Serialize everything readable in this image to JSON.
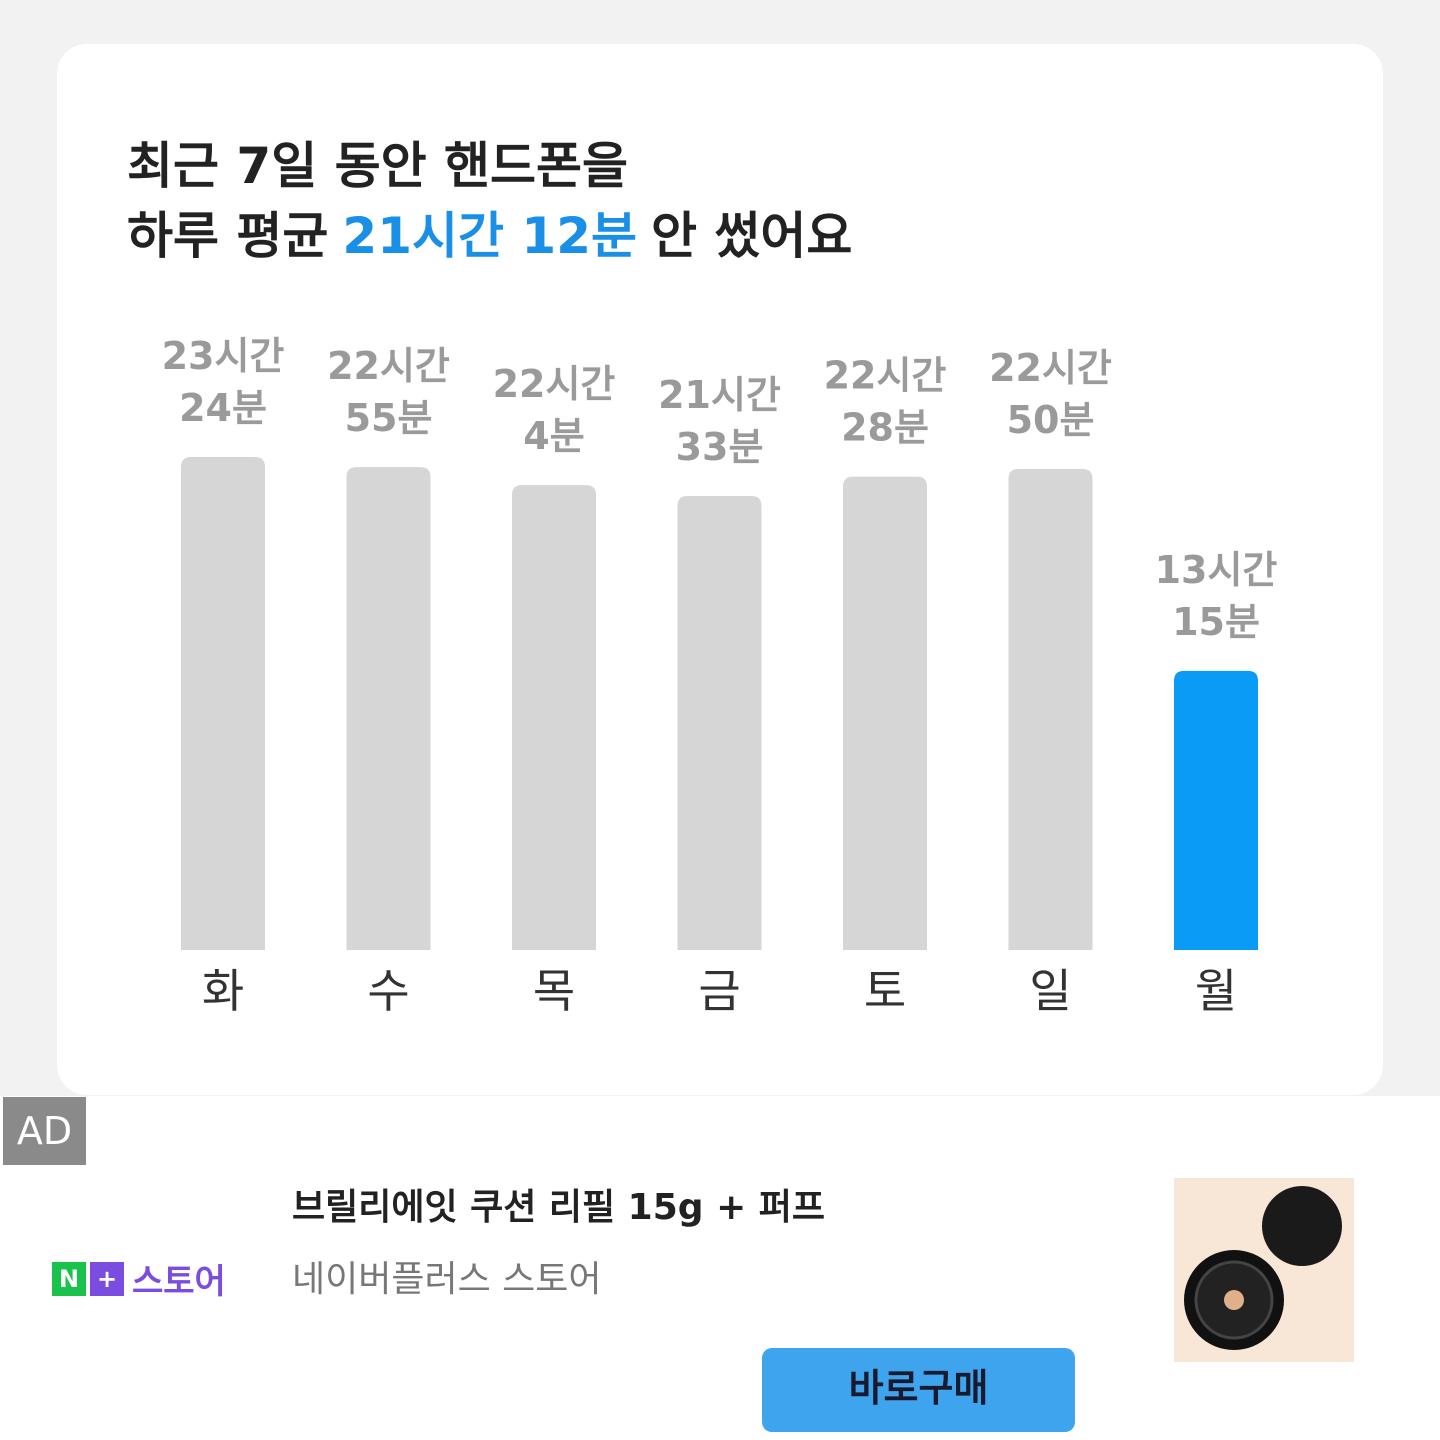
{
  "chart_data": {
    "type": "bar",
    "title_line1": "최근 7일 동안 핸드폰을",
    "title_line2_prefix": "하루 평균",
    "title_highlight": "21시간 12분",
    "title_line2_suffix": "안 썼어요",
    "categories": [
      "화",
      "수",
      "목",
      "금",
      "토",
      "일",
      "월"
    ],
    "values": [
      1404,
      1375,
      1324,
      1293,
      1348,
      1370,
      795
    ],
    "value_labels": [
      [
        "23시간",
        "24분"
      ],
      [
        "22시간",
        "55분"
      ],
      [
        "22시간",
        "4분"
      ],
      [
        "21시간",
        "33분"
      ],
      [
        "22시간",
        "28분"
      ],
      [
        "22시간",
        "50분"
      ],
      [
        "13시간",
        "15분"
      ]
    ],
    "color": "#d6d6d6",
    "highlight_color": "#0a9bf7",
    "highlight_index": 6
  },
  "ad": {
    "badge": "AD",
    "product": "브릴리에잇 쿠션 리필 15g + 퍼프",
    "store_n": "N",
    "store_plus": "+",
    "store_word": "스토어",
    "seller": "네이버플러스 스토어",
    "button": "바로구매"
  }
}
